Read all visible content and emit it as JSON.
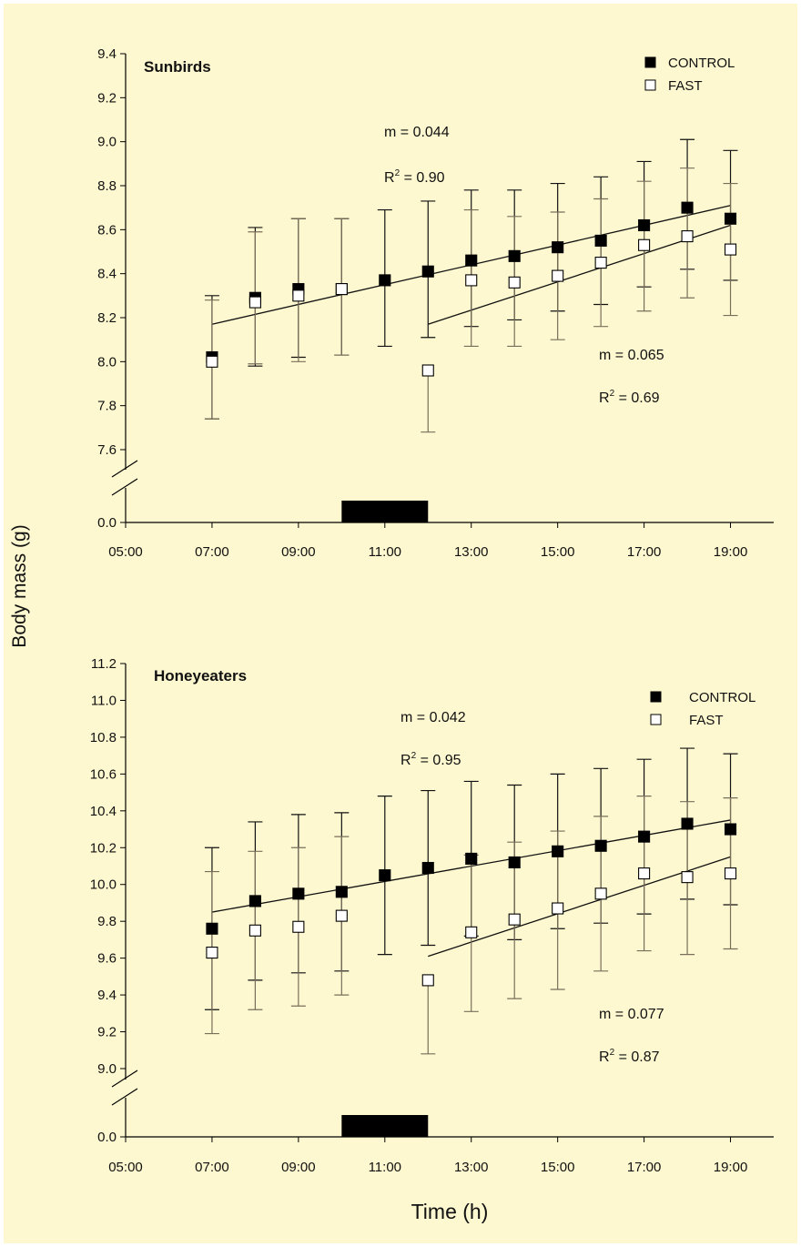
{
  "figure": {
    "ylabel": "Body mass (g)",
    "xlabel": "Time (h)"
  },
  "chart_data": [
    {
      "type": "scatter",
      "title": "Sunbirds",
      "xlabel": "Time (h)",
      "ylabel": "Body mass (g)",
      "xlim": [
        5,
        20
      ],
      "ylim": [
        7.6,
        9.4
      ],
      "axis_break": true,
      "baseline_tick": "0.0",
      "y_ticks": [
        "7.6",
        "7.8",
        "8.0",
        "8.2",
        "8.4",
        "8.6",
        "8.8",
        "9.0",
        "9.2",
        "9.4"
      ],
      "x_ticks": [
        5,
        7,
        9,
        11,
        13,
        15,
        17,
        19
      ],
      "x_tick_labels": [
        "05:00",
        "07:00",
        "09:00",
        "11:00",
        "13:00",
        "15:00",
        "17:00",
        "19:00"
      ],
      "fast_period": [
        10,
        12
      ],
      "legend": {
        "position": "top-right"
      },
      "series": [
        {
          "name": "CONTROL",
          "marker": "filled-square",
          "x": [
            7,
            8,
            9,
            10,
            11,
            12,
            13,
            14,
            15,
            16,
            17,
            18,
            19
          ],
          "y": [
            8.02,
            8.29,
            8.33,
            8.33,
            8.37,
            8.41,
            8.46,
            8.48,
            8.52,
            8.55,
            8.62,
            8.7,
            8.65
          ],
          "err_up": [
            0.28,
            0.32,
            0.32,
            0.32,
            0.32,
            0.32,
            0.32,
            0.3,
            0.29,
            0.29,
            0.29,
            0.31,
            0.31
          ],
          "err_down": [
            0.28,
            0.31,
            0.31,
            0.3,
            0.3,
            0.3,
            0.3,
            0.29,
            0.29,
            0.29,
            0.28,
            0.28,
            0.28
          ]
        },
        {
          "name": "FAST",
          "marker": "open-square",
          "x": [
            7,
            8,
            9,
            10,
            12,
            13,
            14,
            15,
            16,
            17,
            18,
            19
          ],
          "y": [
            8.0,
            8.27,
            8.3,
            8.33,
            7.96,
            8.37,
            8.36,
            8.39,
            8.45,
            8.53,
            8.57,
            8.51
          ],
          "err_up": [
            0.28,
            0.32,
            0.35,
            0.32,
            0,
            0.32,
            0.3,
            0.29,
            0.29,
            0.29,
            0.31,
            0.3
          ],
          "err_down": [
            0.26,
            0.28,
            0.3,
            0.3,
            0.28,
            0.3,
            0.29,
            0.29,
            0.29,
            0.3,
            0.28,
            0.3
          ]
        }
      ],
      "fits": [
        {
          "series": "CONTROL",
          "x": [
            7,
            19
          ],
          "y": [
            8.17,
            8.71
          ],
          "m_text": "m = 0.044",
          "r2_prefix": "R",
          "r2_sup": "2",
          "r2_value": " = 0.90"
        },
        {
          "series": "FAST",
          "x": [
            12,
            19
          ],
          "y": [
            8.17,
            8.62
          ],
          "m_text": "m = 0.065",
          "r2_prefix": "R",
          "r2_sup": "2",
          "r2_value": " = 0.69"
        }
      ]
    },
    {
      "type": "scatter",
      "title": "Honeyeaters",
      "xlabel": "Time (h)",
      "ylabel": "Body mass (g)",
      "xlim": [
        5,
        20
      ],
      "ylim": [
        9.0,
        11.2
      ],
      "axis_break": true,
      "baseline_tick": "0.0",
      "y_ticks": [
        "9.0",
        "9.2",
        "9.4",
        "9.6",
        "9.8",
        "10.0",
        "10.2",
        "10.4",
        "10.6",
        "10.8",
        "11.0",
        "11.2"
      ],
      "x_ticks": [
        5,
        7,
        9,
        11,
        13,
        15,
        17,
        19
      ],
      "x_tick_labels": [
        "05:00",
        "07:00",
        "09:00",
        "11:00",
        "13:00",
        "15:00",
        "17:00",
        "19:00"
      ],
      "fast_period": [
        10,
        12
      ],
      "legend": {
        "position": "top-right"
      },
      "series": [
        {
          "name": "CONTROL",
          "marker": "filled-square",
          "x": [
            7,
            8,
            9,
            10,
            11,
            12,
            13,
            14,
            15,
            16,
            17,
            18,
            19
          ],
          "y": [
            9.76,
            9.91,
            9.95,
            9.96,
            10.05,
            10.09,
            10.14,
            10.12,
            10.18,
            10.21,
            10.26,
            10.33,
            10.3
          ],
          "err_up": [
            0.44,
            0.43,
            0.43,
            0.43,
            0.43,
            0.42,
            0.42,
            0.42,
            0.42,
            0.42,
            0.42,
            0.41,
            0.41
          ],
          "err_down": [
            0.44,
            0.43,
            0.43,
            0.43,
            0.43,
            0.42,
            0.42,
            0.42,
            0.42,
            0.42,
            0.42,
            0.41,
            0.41
          ]
        },
        {
          "name": "FAST",
          "marker": "open-square",
          "x": [
            7,
            8,
            9,
            10,
            12,
            13,
            14,
            15,
            16,
            17,
            18,
            19
          ],
          "y": [
            9.63,
            9.75,
            9.77,
            9.83,
            9.48,
            9.74,
            9.81,
            9.87,
            9.95,
            10.06,
            10.04,
            10.06
          ],
          "err_up": [
            0.44,
            0.43,
            0.43,
            0.43,
            0,
            0.42,
            0.42,
            0.42,
            0.42,
            0.42,
            0.41,
            0.41
          ],
          "err_down": [
            0.44,
            0.43,
            0.43,
            0.43,
            0.4,
            0.43,
            0.43,
            0.44,
            0.42,
            0.42,
            0.42,
            0.41
          ]
        }
      ],
      "fits": [
        {
          "series": "CONTROL",
          "x": [
            7,
            19
          ],
          "y": [
            9.85,
            10.35
          ],
          "m_text": "m = 0.042",
          "r2_prefix": "R",
          "r2_sup": "2",
          "r2_value": " = 0.95"
        },
        {
          "series": "FAST",
          "x": [
            12,
            19
          ],
          "y": [
            9.61,
            10.15
          ],
          "m_text": "m = 0.077",
          "r2_prefix": "R",
          "r2_sup": "2",
          "r2_value": " = 0.87"
        }
      ]
    }
  ]
}
